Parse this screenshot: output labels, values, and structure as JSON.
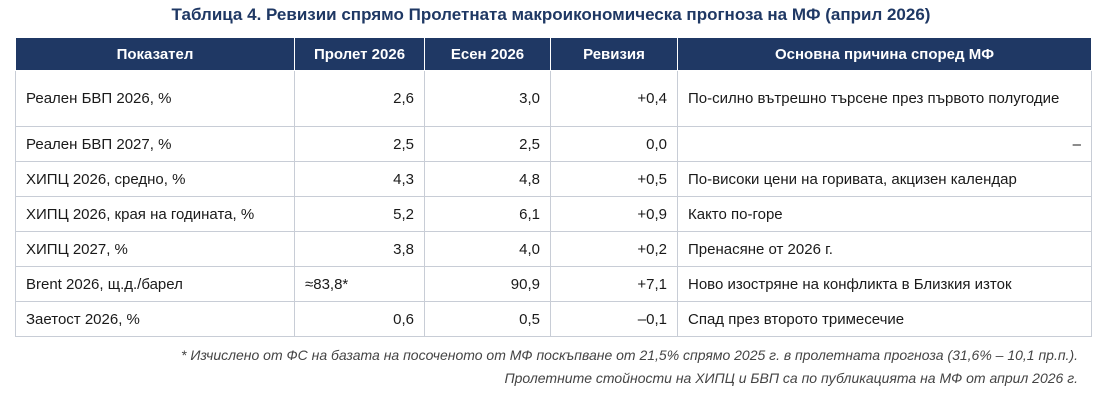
{
  "title": "Таблица 4. Ревизии спрямо Пролетната макроикономическа прогноза на МФ (април 2026)",
  "headers": [
    "Показател",
    "Пролет 2026",
    "Есен 2026",
    "Ревизия",
    "Основна причина според МФ"
  ],
  "rows": [
    {
      "indicator": "Реален БВП 2026, %",
      "spring": "2,6",
      "autumn": "3,0",
      "revision": "+0,4",
      "reason": "По-силно вътрешно търсене през първото полугодие"
    },
    {
      "indicator": "Реален БВП 2027, %",
      "spring": "2,5",
      "autumn": "2,5",
      "revision": "0,0",
      "reason": "–"
    },
    {
      "indicator": "ХИПЦ 2026, средно, %",
      "spring": "4,3",
      "autumn": "4,8",
      "revision": "+0,5",
      "reason": "По-високи цени на горивата, акцизен календар"
    },
    {
      "indicator": "ХИПЦ 2026, края на годината, %",
      "spring": "5,2",
      "autumn": "6,1",
      "revision": "+0,9",
      "reason": "Както по-горе"
    },
    {
      "indicator": "ХИПЦ 2027, %",
      "spring": "3,8",
      "autumn": "4,0",
      "revision": "+0,2",
      "reason": "Пренасяне от 2026 г."
    },
    {
      "indicator": "Brent 2026, щ.д./барел",
      "spring": "≈83,8*",
      "autumn": "90,9",
      "revision": "+7,1",
      "reason": "Ново изостряне на конфликта в Близкия изток"
    },
    {
      "indicator": "Заетост 2026, %",
      "spring": "0,6",
      "autumn": "0,5",
      "revision": "–0,1",
      "reason": "Спад през второто тримесечие"
    }
  ],
  "footnotes": [
    "* Изчислено от ФС на базата на посоченото от МФ поскъпване от 21,5% спрямо 2025 г. в пролетната прогноза (31,6% – 10,1 пр.п.).",
    "Пролетните стойности на ХИПЦ и БВП са по публикацията на МФ от април 2026 г."
  ],
  "colors": {
    "header_bg": "#1f3864",
    "title": "#1f3864",
    "border": "#c8cdd6"
  }
}
